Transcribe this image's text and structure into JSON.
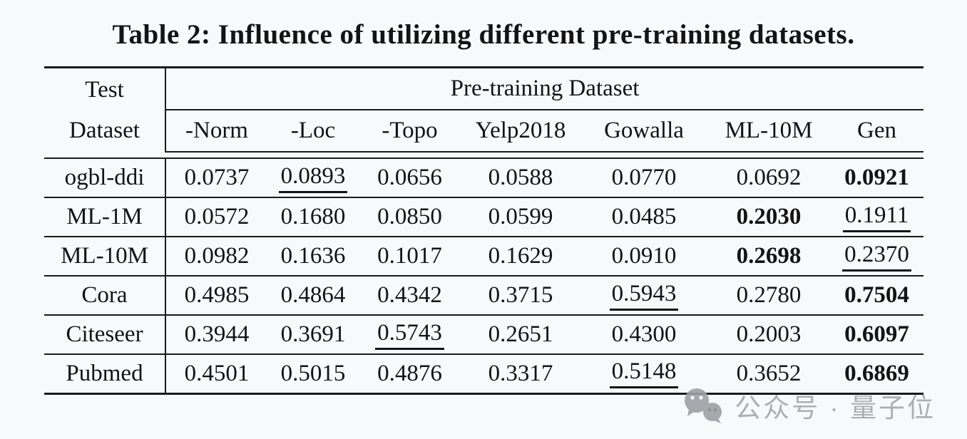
{
  "title": "Table 2: Influence of utilizing different pre-training datasets.",
  "table": {
    "row_header_line1": "Test",
    "row_header_line2": "Dataset",
    "group_header": "Pre-training Dataset",
    "columns": [
      "-Norm",
      "-Loc",
      "-Topo",
      "Yelp2018",
      "Gowalla",
      "ML-10M",
      "Gen"
    ],
    "rows": [
      {
        "label": "ogbl-ddi",
        "values": [
          "0.0737",
          "0.0893",
          "0.0656",
          "0.0588",
          "0.0770",
          "0.0692",
          "0.0921"
        ],
        "bold": 6,
        "underline": 1
      },
      {
        "label": "ML-1M",
        "values": [
          "0.0572",
          "0.1680",
          "0.0850",
          "0.0599",
          "0.0485",
          "0.2030",
          "0.1911"
        ],
        "bold": 5,
        "underline": 6
      },
      {
        "label": "ML-10M",
        "values": [
          "0.0982",
          "0.1636",
          "0.1017",
          "0.1629",
          "0.0910",
          "0.2698",
          "0.2370"
        ],
        "bold": 5,
        "underline": 6
      },
      {
        "label": "Cora",
        "values": [
          "0.4985",
          "0.4864",
          "0.4342",
          "0.3715",
          "0.5943",
          "0.2780",
          "0.7504"
        ],
        "bold": 6,
        "underline": 4
      },
      {
        "label": "Citeseer",
        "values": [
          "0.3944",
          "0.3691",
          "0.5743",
          "0.2651",
          "0.4300",
          "0.2003",
          "0.6097"
        ],
        "bold": 6,
        "underline": 2
      },
      {
        "label": "Pubmed",
        "values": [
          "0.4501",
          "0.5015",
          "0.4876",
          "0.3317",
          "0.5148",
          "0.3652",
          "0.6869"
        ],
        "bold": 6,
        "underline": 4
      }
    ]
  },
  "watermark": {
    "icon": "wechat-icon",
    "text": "公众号 · 量子位"
  },
  "colors": {
    "text": "#141414",
    "background": "#f8f9fa",
    "border": "#1a1a1a",
    "watermark": "#a3a7ab"
  }
}
